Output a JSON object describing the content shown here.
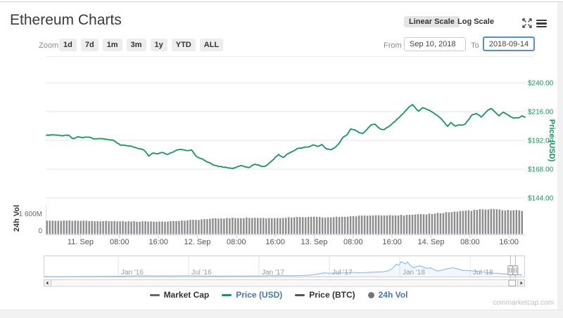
{
  "page": {
    "title": "Ethereum Charts",
    "watermark": "coinmarketcap.com"
  },
  "toolbar": {
    "linear_scale": "Linear Scale",
    "log_scale": "Log Scale",
    "selected_scale": "Linear Scale"
  },
  "zoom_controls": {
    "label": "Zoom",
    "buttons": [
      "1d",
      "7d",
      "1m",
      "3m",
      "1y",
      "YTD",
      "ALL"
    ]
  },
  "date_range": {
    "from_label": "From",
    "from_value": "Sep 10, 2018",
    "to_label": "To",
    "to_value": "2018-09-14"
  },
  "colors": {
    "green": "#0f9b57",
    "nav_blue": "#7cb5ec",
    "vol_gray": "#8e8e8e",
    "axis_line": "#ccd6eb",
    "grid": "#e6e6e6",
    "focus_blue": "#4e90d9",
    "legend_blue": "#4477bb",
    "x_label": "#555555",
    "nav_label": "#999999"
  },
  "legend": [
    {
      "label": "Market Cap",
      "marker": "dash",
      "marker_color": "#666666",
      "label_color": "#333333"
    },
    {
      "label": "Price (USD)",
      "marker": "dash",
      "marker_color": "#0f9b57",
      "label_color": "#4477bb"
    },
    {
      "label": "Price (BTC)",
      "marker": "dash",
      "marker_color": "#555555",
      "label_color": "#333333"
    },
    {
      "label": "24h Vol",
      "marker": "circle",
      "marker_color": "#757575",
      "label_color": "#4477bb"
    }
  ],
  "chart_data": {
    "type": "line",
    "title": "Ethereum price (USD) with 24h volume, Sep 10 - Sep 14 2018, plus full-history navigator",
    "main": {
      "series_name": "Price (USD)",
      "y_axis": {
        "title": "Price (USD)",
        "tick_labels": [
          "$240.00",
          "$216.00",
          "$192.00",
          "$168.00",
          "$144.00"
        ],
        "tick_values": [
          240,
          216,
          192,
          168,
          144
        ],
        "range": [
          132,
          252
        ]
      },
      "x_axis": {
        "start": "2018-09-10 17:00",
        "end": "2018-09-14 19:20",
        "tick_labels": [
          "11. Sep",
          "08:00",
          "16:00",
          "12. Sep",
          "08:00",
          "16:00",
          "13. Sep",
          "08:00",
          "16:00",
          "14. Sep",
          "08:00",
          "16:00"
        ],
        "tick_hours": [
          7,
          15,
          23,
          31,
          39,
          47,
          55,
          63,
          71,
          79,
          87,
          95
        ],
        "total_hours": 98.3
      },
      "points": [
        [
          0,
          196.2
        ],
        [
          1.5,
          196.6
        ],
        [
          3,
          196.0
        ],
        [
          4.5,
          196.5
        ],
        [
          5.5,
          193.4
        ],
        [
          6.5,
          195.0
        ],
        [
          7.5,
          194.3
        ],
        [
          8.5,
          194.7
        ],
        [
          10,
          193.2
        ],
        [
          11.5,
          193.5
        ],
        [
          12.5,
          192.8
        ],
        [
          13.5,
          192.4
        ],
        [
          14.3,
          190.6
        ],
        [
          15.2,
          188.0
        ],
        [
          16.5,
          187.6
        ],
        [
          17.6,
          187.1
        ],
        [
          18.8,
          185.2
        ],
        [
          20,
          184.0
        ],
        [
          21,
          178.9
        ],
        [
          21.8,
          181.4
        ],
        [
          22.8,
          180.8
        ],
        [
          23.8,
          181.9
        ],
        [
          24.8,
          180.3
        ],
        [
          25.8,
          182.0
        ],
        [
          26.8,
          183.9
        ],
        [
          27.8,
          184.4
        ],
        [
          28.8,
          183.5
        ],
        [
          29.8,
          184.1
        ],
        [
          30.8,
          178.6
        ],
        [
          31.8,
          176.8
        ],
        [
          33,
          174.0
        ],
        [
          34.5,
          171.3
        ],
        [
          36.5,
          169.5
        ],
        [
          38.3,
          168.6
        ],
        [
          39.8,
          170.9
        ],
        [
          41.5,
          169.3
        ],
        [
          42.8,
          172.2
        ],
        [
          44.5,
          170.2
        ],
        [
          45.2,
          171.0
        ],
        [
          46.4,
          175.4
        ],
        [
          47.7,
          180.3
        ],
        [
          48.6,
          177.8
        ],
        [
          50,
          181.7
        ],
        [
          51.4,
          184.9
        ],
        [
          52.8,
          186.1
        ],
        [
          53.8,
          186.5
        ],
        [
          54.8,
          188.3
        ],
        [
          55.8,
          187.0
        ],
        [
          56.6,
          188.6
        ],
        [
          57.5,
          184.8
        ],
        [
          58.5,
          184.3
        ],
        [
          59.3,
          186.0
        ],
        [
          60.2,
          190.0
        ],
        [
          61,
          194.9
        ],
        [
          61.8,
          197.0
        ],
        [
          62.5,
          201.5
        ],
        [
          63.3,
          200.8
        ],
        [
          64.2,
          198.5
        ],
        [
          65,
          197.8
        ],
        [
          65.8,
          201.0
        ],
        [
          66.6,
          204.6
        ],
        [
          67.5,
          205.6
        ],
        [
          68.5,
          201.7
        ],
        [
          69.4,
          201.1
        ],
        [
          70.3,
          203.5
        ],
        [
          71.3,
          207.0
        ],
        [
          72.3,
          210.5
        ],
        [
          73.4,
          215.0
        ],
        [
          74.4,
          219.5
        ],
        [
          75.2,
          221.9
        ],
        [
          76,
          218.0
        ],
        [
          76.4,
          216.4
        ],
        [
          77.3,
          219.3
        ],
        [
          78.4,
          217.4
        ],
        [
          79.3,
          215.5
        ],
        [
          80.4,
          212.5
        ],
        [
          81.4,
          208.6
        ],
        [
          82.4,
          203.7
        ],
        [
          83.1,
          207.0
        ],
        [
          83.9,
          204.0
        ],
        [
          84.9,
          204.8
        ],
        [
          86,
          205.5
        ],
        [
          87.5,
          213.5
        ],
        [
          88.3,
          214.5
        ],
        [
          89.3,
          211.5
        ],
        [
          90.8,
          217.5
        ],
        [
          91.4,
          218.5
        ],
        [
          92.2,
          215.5
        ],
        [
          93,
          212.5
        ],
        [
          93.8,
          215.5
        ],
        [
          94.7,
          213.5
        ],
        [
          95.9,
          210.5
        ],
        [
          97,
          210.8
        ],
        [
          97.7,
          212.5
        ],
        [
          98.3,
          211.4
        ]
      ]
    },
    "volume": {
      "series_name": "24h Vol",
      "axis_title": "24h Vol",
      "y_tick_labels": [
        "1 600M",
        "0"
      ],
      "y_tick_values": [
        1600,
        0
      ],
      "bar_count": 170,
      "envelope_millions": [
        [
          0,
          1060
        ],
        [
          6,
          1045
        ],
        [
          12,
          1020
        ],
        [
          18,
          1000
        ],
        [
          22,
          990
        ],
        [
          26,
          1015
        ],
        [
          30,
          1100
        ],
        [
          34,
          1210
        ],
        [
          38,
          1265
        ],
        [
          42,
          1285
        ],
        [
          46,
          1255
        ],
        [
          50,
          1300
        ],
        [
          54,
          1345
        ],
        [
          58,
          1310
        ],
        [
          62,
          1380
        ],
        [
          66,
          1455
        ],
        [
          70,
          1505
        ],
        [
          74,
          1480
        ],
        [
          78,
          1555
        ],
        [
          82,
          1685
        ],
        [
          86,
          1820
        ],
        [
          89,
          1910
        ],
        [
          92,
          1950
        ],
        [
          95,
          1890
        ],
        [
          98.3,
          1855
        ]
      ]
    },
    "navigator": {
      "series_name": "Price (USD) full history",
      "ticks": [
        {
          "label": "Jan '16",
          "f": 0.1554
        },
        {
          "label": "Jul '16",
          "f": 0.3021
        },
        {
          "label": "Jan '17",
          "f": 0.4487
        },
        {
          "label": "Jul '17",
          "f": 0.5953
        },
        {
          "label": "Jan '18",
          "f": 0.7419
        },
        {
          "label": "Jul '18",
          "f": 0.8886
        }
      ],
      "points": [
        [
          0,
          28
        ],
        [
          0.06,
          30
        ],
        [
          0.155,
          60
        ],
        [
          0.2,
          105
        ],
        [
          0.26,
          92
        ],
        [
          0.3,
          105
        ],
        [
          0.35,
          80
        ],
        [
          0.45,
          92
        ],
        [
          0.48,
          122
        ],
        [
          0.525,
          116
        ],
        [
          0.554,
          165
        ],
        [
          0.576,
          305
        ],
        [
          0.584,
          380
        ],
        [
          0.595,
          350
        ],
        [
          0.606,
          366
        ],
        [
          0.628,
          385
        ],
        [
          0.642,
          428
        ],
        [
          0.657,
          397
        ],
        [
          0.672,
          410
        ],
        [
          0.686,
          440
        ],
        [
          0.708,
          490
        ],
        [
          0.72,
          610
        ],
        [
          0.727,
          825
        ],
        [
          0.735,
          1190
        ],
        [
          0.74,
          1100
        ],
        [
          0.745,
          1433
        ],
        [
          0.749,
          1340
        ],
        [
          0.754,
          1220
        ],
        [
          0.758,
          1403
        ],
        [
          0.764,
          1068
        ],
        [
          0.771,
          855
        ],
        [
          0.777,
          975
        ],
        [
          0.784,
          1035
        ],
        [
          0.792,
          915
        ],
        [
          0.799,
          795
        ],
        [
          0.806,
          855
        ],
        [
          0.814,
          670
        ],
        [
          0.821,
          550
        ],
        [
          0.83,
          640
        ],
        [
          0.837,
          730
        ],
        [
          0.845,
          790
        ],
        [
          0.852,
          855
        ],
        [
          0.859,
          790
        ],
        [
          0.867,
          700
        ],
        [
          0.874,
          610
        ],
        [
          0.881,
          610
        ],
        [
          0.889,
          580
        ],
        [
          0.896,
          550
        ],
        [
          0.903,
          520
        ],
        [
          0.912,
          490
        ],
        [
          0.921,
          430
        ],
        [
          0.928,
          400
        ],
        [
          0.936,
          365
        ],
        [
          0.944,
          335
        ],
        [
          0.953,
          305
        ],
        [
          0.962,
          275
        ],
        [
          0.971,
          245
        ],
        [
          0.979,
          215
        ],
        [
          0.988,
          200
        ],
        [
          0.997,
          185
        ]
      ]
    }
  }
}
